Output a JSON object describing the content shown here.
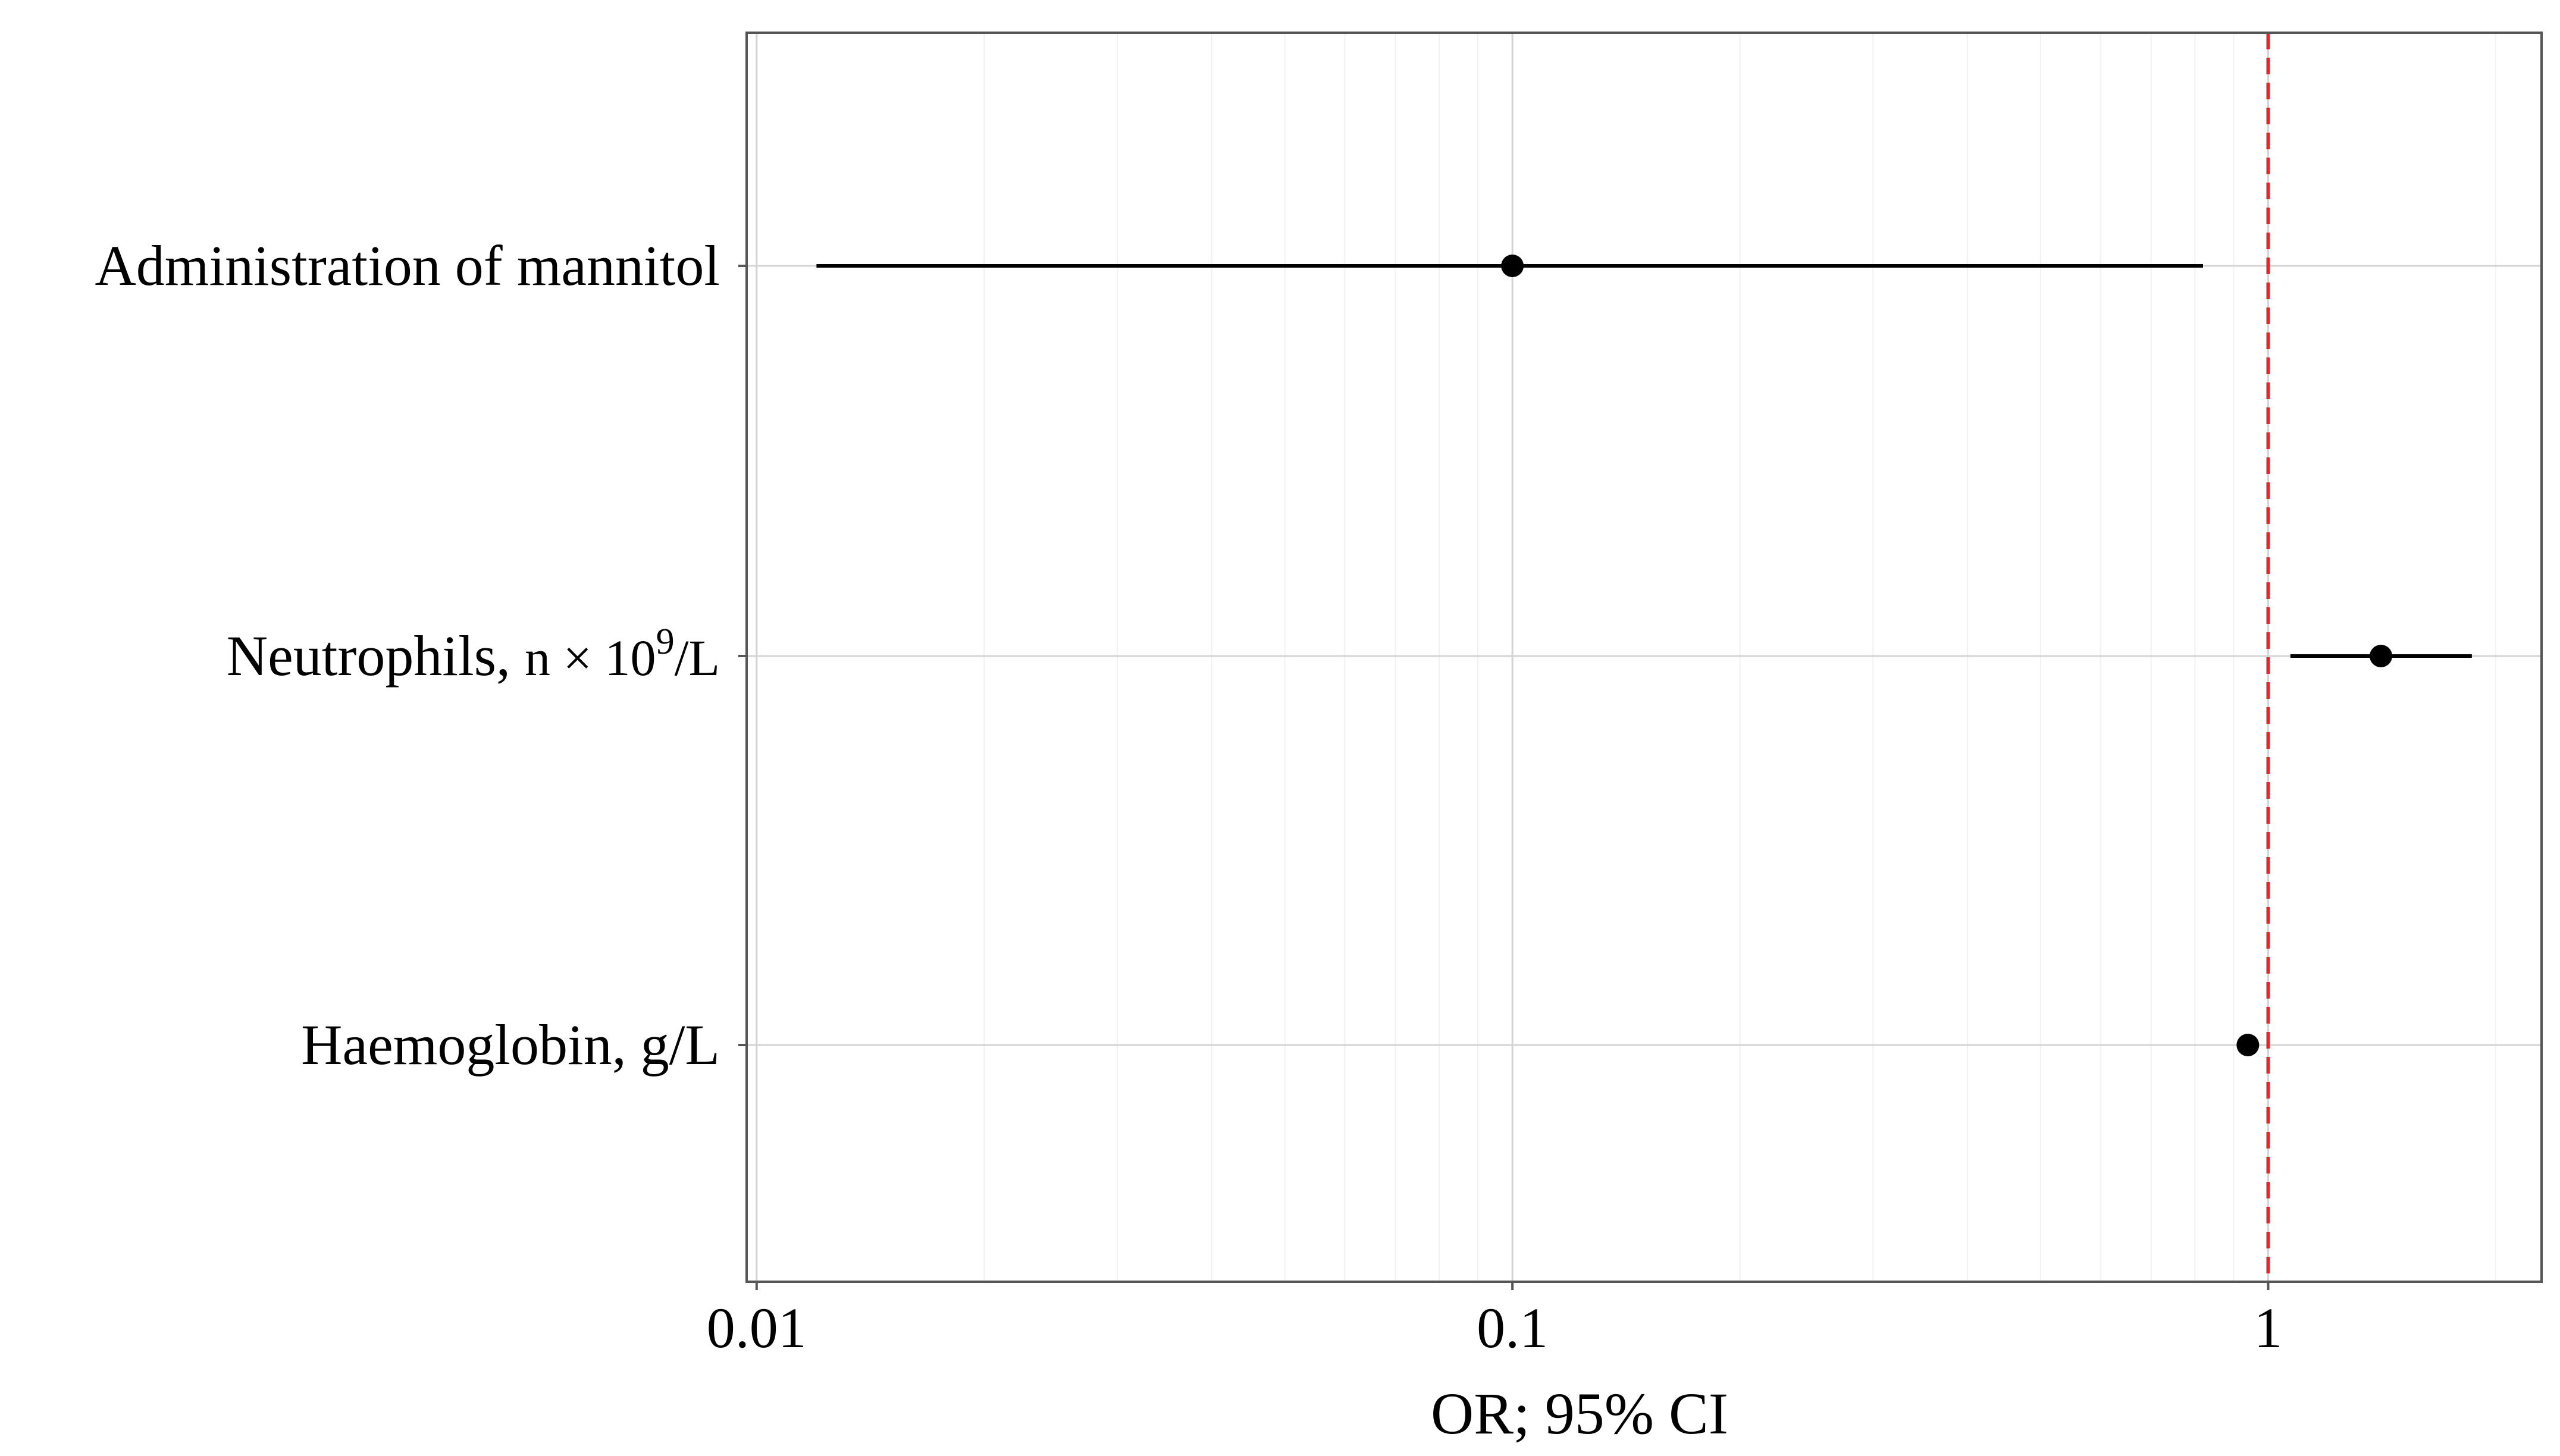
{
  "chart_data": {
    "type": "scatter",
    "subtype": "forest-plot",
    "xlabel": "OR; 95% CI",
    "ylabel": "",
    "x_scale": "log",
    "xlim": [
      0.0097,
      2.3
    ],
    "x_ticks": [
      {
        "value": 0.01,
        "label": "0.01"
      },
      {
        "value": 0.1,
        "label": "0.1"
      },
      {
        "value": 1,
        "label": "1"
      }
    ],
    "reference_line": {
      "x": 1,
      "color": "#e8262a",
      "style": "dashed"
    },
    "grid": true,
    "rows": [
      {
        "label": "Administration of mannitol",
        "or": 0.1,
        "ci_low": 0.012,
        "ci_high": 0.82
      },
      {
        "label_main": "Neutrophils, ",
        "label_unit_prefix": "n × 10",
        "label_sup": "9",
        "label_unit_suffix": "/L",
        "or": 1.41,
        "ci_low": 1.07,
        "ci_high": 1.86
      },
      {
        "label": "Haemoglobin, g/L",
        "or": 0.94,
        "ci_low": 0.92,
        "ci_high": 0.96
      }
    ]
  }
}
